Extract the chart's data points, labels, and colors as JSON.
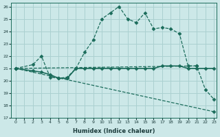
{
  "title": "",
  "xlabel": "Humidex (Indice chaleur)",
  "bg_color": "#cce8e8",
  "grid_color": "#aad0d0",
  "line_color": "#1a6b5a",
  "xlim": [
    -0.5,
    23.3
  ],
  "ylim": [
    17,
    26.3
  ],
  "xticks": [
    0,
    1,
    2,
    3,
    4,
    5,
    6,
    7,
    8,
    9,
    10,
    11,
    12,
    13,
    14,
    15,
    16,
    17,
    18,
    19,
    20,
    21,
    22,
    23
  ],
  "yticks": [
    17,
    18,
    19,
    20,
    21,
    22,
    23,
    24,
    25,
    26
  ],
  "line1_x": [
    0,
    2,
    3,
    4,
    5,
    6,
    7,
    8,
    9,
    10,
    11,
    12,
    13,
    14,
    15,
    16,
    17,
    18,
    19,
    20,
    21,
    22,
    23
  ],
  "line1_y": [
    21,
    21.3,
    22.0,
    20.3,
    20.2,
    20.3,
    21.0,
    22.3,
    23.3,
    25.0,
    25.5,
    26.0,
    25.0,
    24.7,
    25.5,
    24.2,
    24.3,
    24.2,
    23.8,
    21.2,
    21.2,
    19.3,
    18.5
  ],
  "line2_x": [
    0,
    2,
    3,
    4,
    5,
    6,
    7,
    8,
    9,
    10,
    11,
    12,
    13,
    14,
    15,
    16,
    17,
    18,
    19,
    20,
    21,
    22,
    23
  ],
  "line2_y": [
    21,
    20.8,
    20.7,
    20.5,
    20.2,
    20.2,
    21.0,
    21.0,
    21.0,
    21.0,
    21.0,
    21.0,
    21.0,
    21.0,
    21.0,
    21.0,
    21.2,
    21.2,
    21.2,
    21.0,
    21.0,
    21.0,
    21.0
  ],
  "line3_x": [
    0,
    23
  ],
  "line3_y": [
    21,
    17.5
  ],
  "line4_x": [
    0,
    21
  ],
  "line4_y": [
    21,
    21.2
  ]
}
